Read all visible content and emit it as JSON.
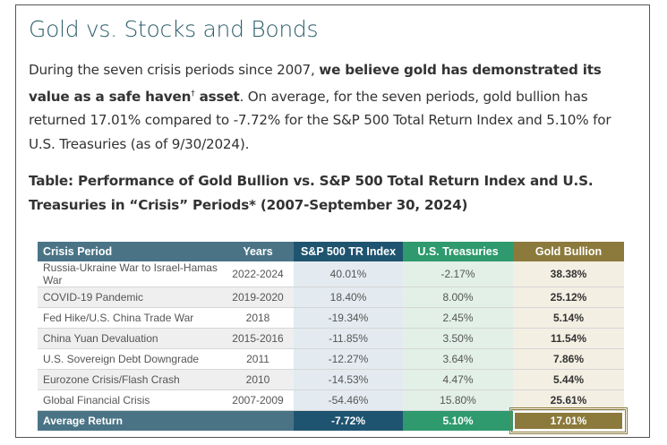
{
  "title": "Gold vs. Stocks and Bonds",
  "paragraph": {
    "lead": "During the seven crisis periods since 2007, ",
    "bold": "we believe gold has demonstrated its value as a safe haven",
    "dagger": "†",
    "bold_tail": " asset",
    "rest": ". On average, for the seven periods, gold bullion has returned 17.01% compared to -7.72% for the S&P 500 Total Return Index and 5.10% for U.S. Treasuries (as of 9/30/2024)."
  },
  "table_caption": "Table: Performance of Gold Bullion vs. S&P 500 Total Return Index and U.S. Treasuries in “Crisis” Periods* (2007-September 30, 2024)",
  "table": {
    "header": [
      "Crisis Period",
      "Years",
      "S&P 500 TR Index",
      "U.S. Treasuries",
      "Gold Bullion"
    ],
    "rows": [
      [
        "Russia-Ukraine War to Israel-Hamas War",
        "2022-2024",
        "40.01%",
        "-2.17%",
        "38.38%"
      ],
      [
        "COVID-19 Pandemic",
        "2019-2020",
        "18.40%",
        "8.00%",
        "25.12%"
      ],
      [
        "Fed Hike/U.S. China Trade War",
        "2018",
        "-19.34%",
        "2.45%",
        "5.14%"
      ],
      [
        "China Yuan Devaluation",
        "2015-2016",
        "-11.85%",
        "3.50%",
        "11.54%"
      ],
      [
        "U.S. Sovereign Debt Downgrade",
        "2011",
        "-12.27%",
        "3.64%",
        "7.86%"
      ],
      [
        "Eurozone Crisis/Flash Crash",
        "2010",
        "-14.53%",
        "4.47%",
        "5.44%"
      ],
      [
        "Global Financial Crisis",
        "2007-2009",
        "-54.46%",
        "15.80%",
        "25.61%"
      ]
    ],
    "footer": [
      "Average Return",
      "-7.72%",
      "5.10%",
      "17.01%"
    ]
  }
}
